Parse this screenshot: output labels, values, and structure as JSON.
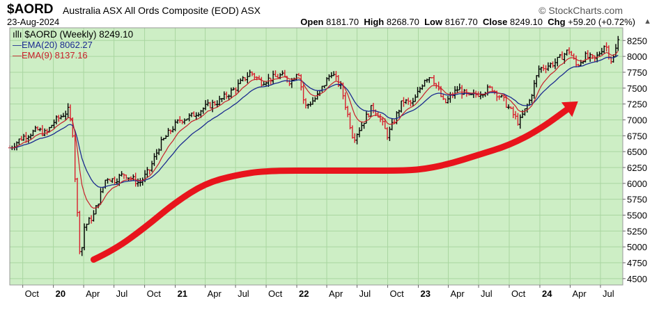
{
  "header": {
    "symbol": "$AORD",
    "description": "Australia ASX All Ords Composite (EOD) ASX",
    "brand": "© StockCharts.com",
    "date": "23-Aug-2024",
    "open_label": "Open",
    "open": "8181.70",
    "high_label": "High",
    "high": "8268.70",
    "low_label": "Low",
    "low": "8167.70",
    "close_label": "Close",
    "close": "8249.10",
    "chg_label": "Chg",
    "chg": "+59.20 (+0.72%)"
  },
  "legend": {
    "main": "$AORD (Weekly) 8249.10",
    "ema20": "EMA(20) 8062.27",
    "ema9": "EMA(9) 8137.16"
  },
  "colors": {
    "plot_bg": "#cdeec5",
    "grid": "#a9d6a0",
    "bar_up": "#000000",
    "bar_down": "#d81e2c",
    "ema20": "#1a2a8f",
    "ema9": "#c8202a",
    "arrow": "#e8141c"
  },
  "chart_data": {
    "type": "ohlc_weekly",
    "title": "$AORD (Weekly)",
    "ylim": [
      4400,
      8450
    ],
    "y_ticks": [
      4500,
      4750,
      5000,
      5250,
      5500,
      5750,
      6000,
      6250,
      6500,
      6750,
      7000,
      7250,
      7500,
      7750,
      8000,
      8250
    ],
    "x_tick_labels": [
      "Oct",
      "20",
      "Apr",
      "Jul",
      "Oct",
      "21",
      "Apr",
      "Jul",
      "Oct",
      "22",
      "Apr",
      "Jul",
      "Oct",
      "23",
      "Apr",
      "Jul",
      "Oct",
      "24",
      "Apr",
      "Jul"
    ],
    "x_tick_dates": [
      "2019-10-01",
      "2020-01-01",
      "2020-04-01",
      "2020-07-01",
      "2020-10-01",
      "2021-01-01",
      "2021-04-01",
      "2021-07-01",
      "2021-10-01",
      "2022-01-01",
      "2022-04-01",
      "2022-07-01",
      "2022-10-01",
      "2023-01-01",
      "2023-04-01",
      "2023-07-01",
      "2023-10-01",
      "2024-01-01",
      "2024-04-01",
      "2024-07-01"
    ],
    "bold_tick_labels": [
      "20",
      "21",
      "22",
      "23",
      "24"
    ],
    "x_range": [
      "2019-08-23",
      "2024-09-06"
    ],
    "price_path": [
      [
        "2019-08-23",
        6560
      ],
      [
        "2019-10-01",
        6730
      ],
      [
        "2019-11-15",
        6840
      ],
      [
        "2019-12-10",
        6780
      ],
      [
        "2020-01-01",
        6960
      ],
      [
        "2020-02-15",
        7150
      ],
      [
        "2020-02-28",
        6800
      ],
      [
        "2020-03-08",
        5900
      ],
      [
        "2020-03-23",
        4750
      ],
      [
        "2020-04-01",
        5300
      ],
      [
        "2020-05-01",
        5500
      ],
      [
        "2020-06-08",
        6100
      ],
      [
        "2020-07-01",
        6050
      ],
      [
        "2020-08-01",
        6150
      ],
      [
        "2020-09-15",
        6000
      ],
      [
        "2020-10-15",
        6200
      ],
      [
        "2020-11-15",
        6600
      ],
      [
        "2020-12-20",
        6850
      ],
      [
        "2021-01-15",
        7000
      ],
      [
        "2021-02-15",
        7050
      ],
      [
        "2021-04-01",
        7200
      ],
      [
        "2021-05-15",
        7300
      ],
      [
        "2021-07-01",
        7500
      ],
      [
        "2021-08-15",
        7750
      ],
      [
        "2021-09-15",
        7600
      ],
      [
        "2021-10-15",
        7650
      ],
      [
        "2021-11-15",
        7700
      ],
      [
        "2021-12-15",
        7600
      ],
      [
        "2022-01-05",
        7800
      ],
      [
        "2022-01-25",
        7200
      ],
      [
        "2022-03-01",
        7350
      ],
      [
        "2022-04-15",
        7750
      ],
      [
        "2022-05-15",
        7500
      ],
      [
        "2022-06-20",
        6700
      ],
      [
        "2022-08-15",
        7200
      ],
      [
        "2022-09-01",
        7100
      ],
      [
        "2022-10-01",
        6750
      ],
      [
        "2022-11-15",
        7300
      ],
      [
        "2022-12-15",
        7250
      ],
      [
        "2023-01-20",
        7650
      ],
      [
        "2023-02-10",
        7700
      ],
      [
        "2023-03-20",
        7250
      ],
      [
        "2023-05-01",
        7500
      ],
      [
        "2023-06-01",
        7350
      ],
      [
        "2023-07-15",
        7450
      ],
      [
        "2023-08-10",
        7500
      ],
      [
        "2023-09-15",
        7300
      ],
      [
        "2023-10-30",
        6950
      ],
      [
        "2023-12-01",
        7300
      ],
      [
        "2023-12-29",
        7800
      ],
      [
        "2024-02-15",
        7900
      ],
      [
        "2024-03-28",
        8100
      ],
      [
        "2024-04-20",
        7850
      ],
      [
        "2024-05-15",
        8000
      ],
      [
        "2024-06-15",
        7950
      ],
      [
        "2024-07-15",
        8200
      ],
      [
        "2024-08-05",
        7900
      ],
      [
        "2024-08-23",
        8249
      ]
    ],
    "series": [
      {
        "name": "$AORD (Weekly)",
        "style": "ohlc",
        "last": 8249.1
      },
      {
        "name": "EMA(20)",
        "period": 20,
        "last": 8062.27
      },
      {
        "name": "EMA(9)",
        "period": 9,
        "last": 8137.16
      }
    ],
    "annotation": {
      "type": "hand-drawn arrow",
      "path": [
        [
          "2020-05-01",
          4800
        ],
        [
          "2020-07-01",
          4950
        ],
        [
          "2020-10-01",
          5300
        ],
        [
          "2021-01-01",
          5700
        ],
        [
          "2021-04-01",
          6000
        ],
        [
          "2021-07-01",
          6130
        ],
        [
          "2021-10-01",
          6200
        ],
        [
          "2022-04-01",
          6200
        ],
        [
          "2022-10-01",
          6200
        ],
        [
          "2023-01-01",
          6210
        ],
        [
          "2023-04-01",
          6300
        ],
        [
          "2023-07-01",
          6450
        ],
        [
          "2023-10-01",
          6600
        ],
        [
          "2024-01-01",
          6850
        ],
        [
          "2024-04-01",
          7200
        ]
      ]
    }
  }
}
